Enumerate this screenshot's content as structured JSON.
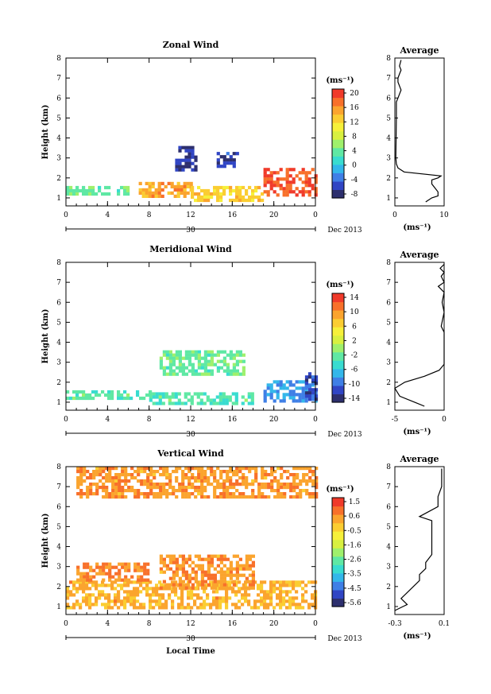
{
  "colors": {
    "scale": [
      "#2d2f6e",
      "#3045c4",
      "#3f7fe6",
      "#33b7ea",
      "#39dcd0",
      "#5fe8a4",
      "#9ff06c",
      "#d8f040",
      "#f6f03a",
      "#fbcd32",
      "#fba42e",
      "#f8702a",
      "#f03a2a"
    ]
  },
  "panels": [
    {
      "key": "zonal",
      "title": "Zonal Wind",
      "avg_title": "Average",
      "ylabel": "Height (km)",
      "unit": "(ms⁻¹)",
      "xticks": [
        "0",
        "4",
        "8",
        "12",
        "16",
        "20",
        "0"
      ],
      "yticks": [
        "1",
        "2",
        "3",
        "4",
        "5",
        "6",
        "7",
        "8"
      ],
      "date_day": "30",
      "date_label": "Dec 2013",
      "cbar_ticks": [
        "20",
        "16",
        "12",
        "8",
        "4",
        "0",
        "-4",
        "-8"
      ],
      "avg_xticks": [
        "0",
        "10"
      ],
      "avg_unit": "(ms⁻¹)"
    },
    {
      "key": "meridional",
      "title": "Meridional Wind",
      "avg_title": "Average",
      "ylabel": "Height (km)",
      "unit": "(ms⁻¹)",
      "xticks": [
        "0",
        "4",
        "8",
        "12",
        "16",
        "20",
        "0"
      ],
      "yticks": [
        "1",
        "2",
        "3",
        "4",
        "5",
        "6",
        "7",
        "8"
      ],
      "date_day": "30",
      "date_label": "Dec 2013",
      "cbar_ticks": [
        "14",
        "10",
        "6",
        "2",
        "-2",
        "-6",
        "-10",
        "-14"
      ],
      "avg_xticks": [
        "-5",
        "0"
      ],
      "avg_unit": "(ms⁻¹)"
    },
    {
      "key": "vertical",
      "title": "Vertical Wind",
      "avg_title": "Average",
      "ylabel": "Height (km)",
      "unit": "(ms⁻¹)",
      "xticks": [
        "0",
        "4",
        "8",
        "12",
        "16",
        "20",
        "0"
      ],
      "yticks": [
        "1",
        "2",
        "3",
        "4",
        "5",
        "6",
        "7",
        "8"
      ],
      "date_day": "30",
      "date_label": "Dec 2013",
      "cbar_ticks": [
        "1.5",
        "0.6",
        "-0.5",
        "-1.6",
        "-2.6",
        "-3.5",
        "-4.5",
        "-5.6"
      ],
      "avg_xticks": [
        "-0.3",
        "0.1"
      ],
      "avg_unit": "(ms⁻¹)",
      "xlabel": "Local Time"
    }
  ],
  "chart_data": [
    {
      "type": "heatmap",
      "title": "Zonal Wind",
      "xlabel": "",
      "ylabel": "Height (km)",
      "xlim": [
        0,
        24
      ],
      "ylim": [
        0.6,
        8
      ],
      "clim": [
        -8,
        22
      ],
      "regions": [
        {
          "x": [
            0,
            6
          ],
          "y": [
            1.2,
            1.6
          ],
          "value": 5
        },
        {
          "x": [
            7,
            12
          ],
          "y": [
            1.1,
            1.8
          ],
          "value": 16
        },
        {
          "x": [
            12,
            19
          ],
          "y": [
            0.9,
            1.6
          ],
          "value": 14
        },
        {
          "x": [
            19,
            24
          ],
          "y": [
            1.1,
            2.5
          ],
          "value": 20
        },
        {
          "x": [
            10.5,
            12.5
          ],
          "y": [
            2.4,
            3.6
          ],
          "value": -6
        },
        {
          "x": [
            14.5,
            16.5
          ],
          "y": [
            2.6,
            3.3
          ],
          "value": -5
        }
      ]
    },
    {
      "type": "line",
      "title": "Average",
      "xlim": [
        0,
        16
      ],
      "ylim": [
        0.6,
        8
      ],
      "x": [
        10,
        12,
        14,
        14,
        13,
        12,
        12,
        14,
        15,
        3,
        1,
        0.5,
        0.3,
        0.5,
        0.5,
        1,
        2,
        1,
        1,
        1.5,
        2,
        1.5,
        2
      ],
      "y": [
        0.8,
        1.0,
        1.1,
        1.3,
        1.5,
        1.7,
        1.9,
        2.0,
        2.1,
        2.3,
        2.5,
        2.7,
        3.0,
        5.0,
        5.8,
        6.0,
        6.4,
        6.8,
        7.0,
        7.2,
        7.4,
        7.6,
        7.9
      ]
    },
    {
      "type": "heatmap",
      "title": "Meridional Wind",
      "xlabel": "",
      "ylabel": "Height (km)",
      "xlim": [
        0,
        24
      ],
      "ylim": [
        0.6,
        8
      ],
      "clim": [
        -16,
        16
      ],
      "regions": [
        {
          "x": [
            0,
            8
          ],
          "y": [
            1.2,
            1.6
          ],
          "value": -3
        },
        {
          "x": [
            8,
            18
          ],
          "y": [
            0.9,
            1.5
          ],
          "value": -3
        },
        {
          "x": [
            9,
            17
          ],
          "y": [
            2.4,
            3.6
          ],
          "value": -2
        },
        {
          "x": [
            19,
            24
          ],
          "y": [
            1.1,
            2.1
          ],
          "value": -9
        },
        {
          "x": [
            23,
            24
          ],
          "y": [
            1.2,
            2.5
          ],
          "value": -12
        }
      ]
    },
    {
      "type": "line",
      "title": "Average",
      "xlim": [
        -5,
        0
      ],
      "ylim": [
        0.6,
        8
      ],
      "x": [
        -2,
        -3,
        -4.5,
        -5,
        -4,
        -2,
        -0.5,
        0,
        0,
        0,
        0,
        -0.3,
        0,
        -0.2,
        0,
        -0.6,
        0,
        -0.3,
        0,
        -0.4,
        0
      ],
      "y": [
        0.8,
        1.0,
        1.3,
        1.7,
        2.0,
        2.3,
        2.6,
        2.9,
        3.5,
        4.0,
        4.5,
        4.8,
        5.5,
        6.0,
        6.5,
        6.8,
        7.0,
        7.3,
        7.5,
        7.7,
        7.9
      ]
    },
    {
      "type": "heatmap",
      "title": "Vertical Wind",
      "xlabel": "Local Time",
      "ylabel": "Height (km)",
      "xlim": [
        0,
        24
      ],
      "ylim": [
        0.6,
        8
      ],
      "clim": [
        -6,
        2
      ],
      "regions": [
        {
          "x": [
            0,
            24
          ],
          "y": [
            0.9,
            2.3
          ],
          "value": 0.3
        },
        {
          "x": [
            9,
            18
          ],
          "y": [
            2.0,
            3.6
          ],
          "value": 0.6
        },
        {
          "x": [
            1,
            24
          ],
          "y": [
            6.5,
            8
          ],
          "value": 0.6
        },
        {
          "x": [
            1,
            8
          ],
          "y": [
            2.4,
            3.2
          ],
          "value": 0.9
        }
      ]
    },
    {
      "type": "line",
      "title": "Average",
      "xlim": [
        -0.3,
        0.1
      ],
      "ylim": [
        0.6,
        8
      ],
      "x": [
        -0.3,
        -0.2,
        -0.25,
        -0.2,
        -0.15,
        -0.1,
        -0.1,
        -0.05,
        -0.05,
        0,
        0,
        0,
        0,
        -0.1,
        0.05,
        0.05,
        0.08,
        0.08
      ],
      "y": [
        0.8,
        1.1,
        1.4,
        1.7,
        2.0,
        2.3,
        2.6,
        2.9,
        3.2,
        3.6,
        4.0,
        5.0,
        5.3,
        5.5,
        6.0,
        6.5,
        7.0,
        7.9
      ]
    }
  ]
}
